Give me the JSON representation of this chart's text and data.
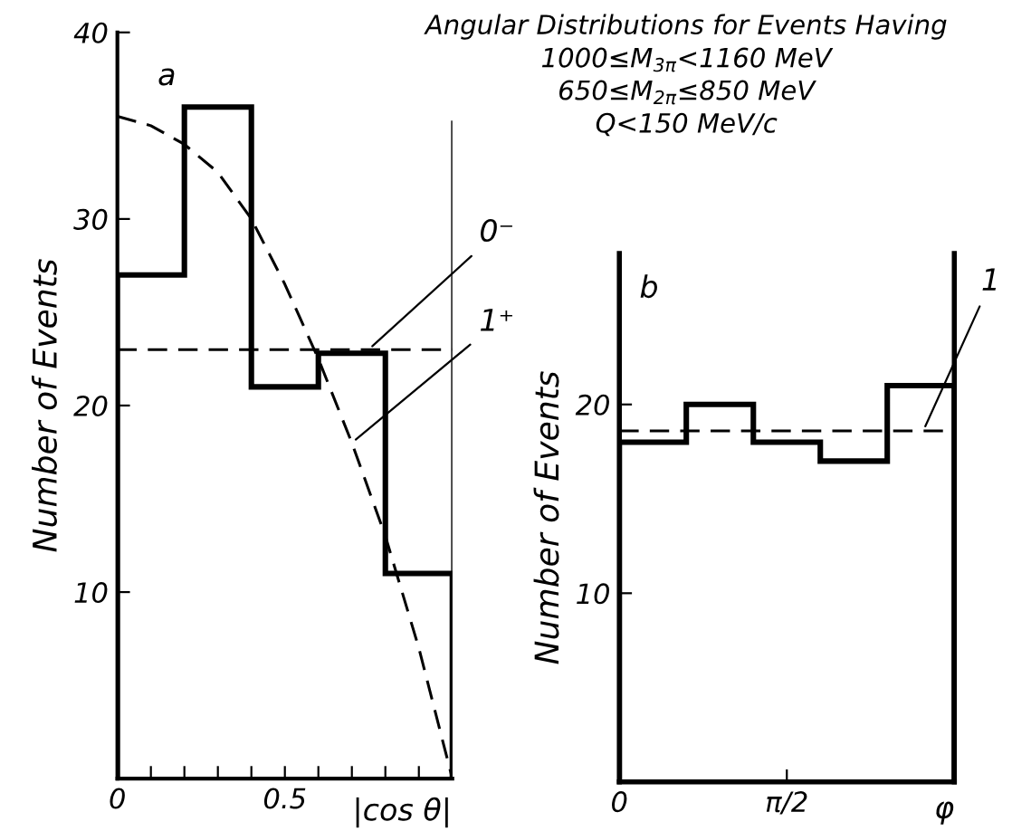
{
  "chart_data": [
    {
      "type": "histogram",
      "xlabel": "|cos θ|",
      "ylabel": "Number of Events",
      "series": [
        {
          "type": "histogram",
          "color": "#000000",
          "bins": [
            0,
            0.2,
            0.4,
            0.6,
            0.8,
            1.0
          ],
          "values": [
            27,
            36,
            21,
            22.8,
            11
          ]
        },
        {
          "type": "line",
          "color": "#000000",
          "line_style": "dashed",
          "x": [
            0,
            1.0
          ],
          "values": [
            23,
            23
          ]
        },
        {
          "type": "line",
          "color": "#000000",
          "line_style": "dashed",
          "x": [
            0,
            0.1,
            0.2,
            0.3,
            0.4,
            0.5,
            0.6,
            0.7,
            0.8,
            0.9,
            1.0
          ],
          "values": [
            35.5,
            35,
            34,
            32.5,
            30,
            26.5,
            22.5,
            18,
            13,
            7,
            0
          ]
        }
      ],
      "annotations": [
        "a",
        {
          "text": "0⁻",
          "x": 0.75,
          "y": 23
        },
        {
          "text": "1⁺",
          "x": 0.7,
          "y": 18
        }
      ],
      "ref_lines": [
        {
          "axis": "x",
          "value": 1.0,
          "label": null
        }
      ],
      "xlim": [
        0,
        1.0
      ],
      "ylim": [
        0,
        40
      ],
      "xticks": [
        0,
        {
          "value": 0.1,
          "label": null
        },
        {
          "value": 0.2,
          "label": null
        },
        {
          "value": 0.3,
          "label": null
        },
        {
          "value": 0.4,
          "label": null
        },
        0.5,
        {
          "value": 0.6,
          "label": null
        },
        {
          "value": 0.7,
          "label": null
        },
        {
          "value": 0.8,
          "label": null
        },
        {
          "value": 0.9,
          "label": null
        }
      ],
      "yticks": [
        10,
        20,
        30,
        40
      ],
      "grid": false,
      "legend": false
    },
    {
      "type": "histogram",
      "title": "Angular Distributions for Events Having",
      "subtitle": "1000≤M$_{3π}$<1160 MeV\n650≤M$_{2π}$≤850 MeV\nQ<150 MeV/c",
      "xlabel": "φ",
      "ylabel": "Number of Events",
      "series": [
        {
          "type": "histogram",
          "color": "#000000",
          "bins": [
            0,
            0.628,
            1.257,
            1.885,
            2.513,
            3.142
          ],
          "values": [
            18,
            20,
            18,
            17,
            21
          ]
        },
        {
          "type": "line",
          "color": "#000000",
          "line_style": "dashed",
          "x": [
            0,
            3.142
          ],
          "values": [
            18.6,
            18.6
          ]
        }
      ],
      "annotations": [
        "b",
        {
          "text": "1",
          "x": 2.85,
          "y": 18.6
        }
      ],
      "xlim": [
        0,
        3.142
      ],
      "ylim": [
        0,
        28
      ],
      "xticks": [
        0,
        {
          "value": 1.571,
          "label": "π/2"
        }
      ],
      "yticks": [
        10,
        20
      ],
      "grid": false,
      "legend": false
    }
  ]
}
